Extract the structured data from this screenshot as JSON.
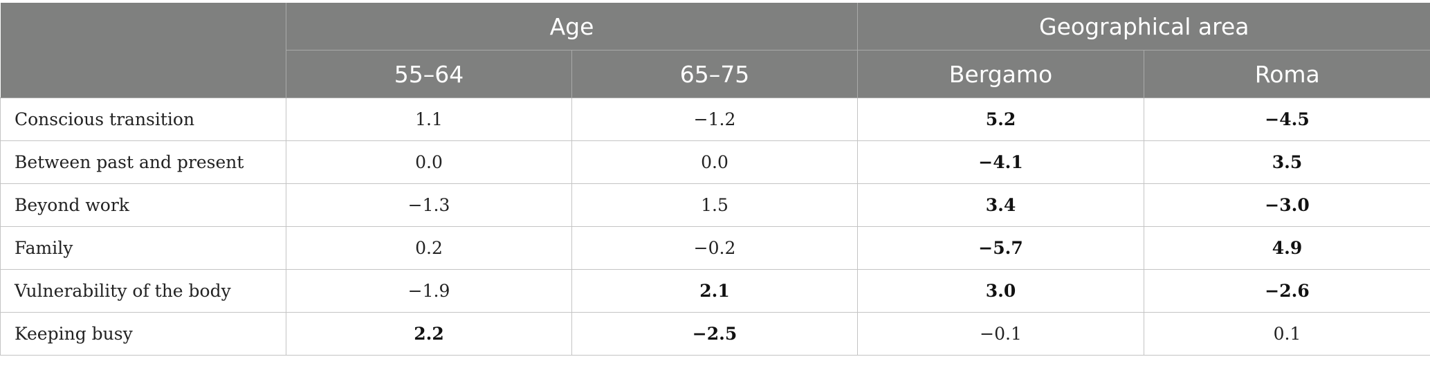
{
  "header": {
    "groups": [
      {
        "label": "Age"
      },
      {
        "label": "Geographical area"
      }
    ],
    "columns": [
      "55–64",
      "65–75",
      "Bergamo",
      "Roma"
    ]
  },
  "rows": [
    {
      "label": "Conscious transition",
      "cells": [
        {
          "value": "1.1",
          "bold": false
        },
        {
          "value": "−1.2",
          "bold": false
        },
        {
          "value": "5.2",
          "bold": true
        },
        {
          "value": "−4.5",
          "bold": true
        }
      ]
    },
    {
      "label": "Between past and present",
      "cells": [
        {
          "value": "0.0",
          "bold": false
        },
        {
          "value": "0.0",
          "bold": false
        },
        {
          "value": "−4.1",
          "bold": true
        },
        {
          "value": "3.5",
          "bold": true
        }
      ]
    },
    {
      "label": "Beyond work",
      "cells": [
        {
          "value": "−1.3",
          "bold": false
        },
        {
          "value": "1.5",
          "bold": false
        },
        {
          "value": "3.4",
          "bold": true
        },
        {
          "value": "−3.0",
          "bold": true
        }
      ]
    },
    {
      "label": "Family",
      "cells": [
        {
          "value": "0.2",
          "bold": false
        },
        {
          "value": "−0.2",
          "bold": false
        },
        {
          "value": "−5.7",
          "bold": true
        },
        {
          "value": "4.9",
          "bold": true
        }
      ]
    },
    {
      "label": "Vulnerability of the body",
      "cells": [
        {
          "value": "−1.9",
          "bold": false
        },
        {
          "value": "2.1",
          "bold": true
        },
        {
          "value": "3.0",
          "bold": true
        },
        {
          "value": "−2.6",
          "bold": true
        }
      ]
    },
    {
      "label": "Keeping busy",
      "cells": [
        {
          "value": "2.2",
          "bold": true
        },
        {
          "value": "−2.5",
          "bold": true
        },
        {
          "value": "−0.1",
          "bold": false
        },
        {
          "value": "0.1",
          "bold": false
        }
      ]
    }
  ]
}
